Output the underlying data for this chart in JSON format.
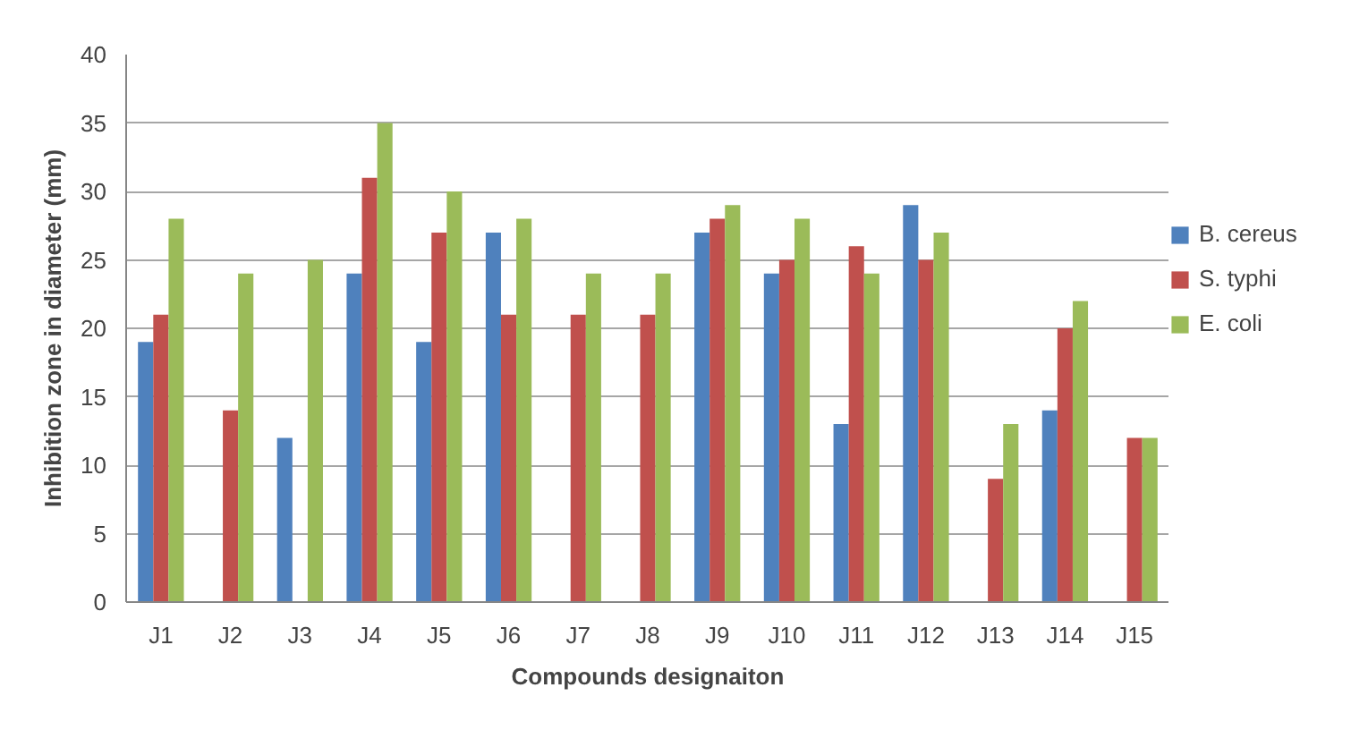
{
  "chart_data": {
    "type": "bar",
    "xlabel": "Compounds designaiton",
    "ylabel": "Inhibition zone in diameter (mm)",
    "categories": [
      "J1",
      "J2",
      "J3",
      "J4",
      "J5",
      "J6",
      "J7",
      "J8",
      "J9",
      "J10",
      "J11",
      "J12",
      "J13",
      "J14",
      "J15"
    ],
    "series": [
      {
        "name": "B. cereus",
        "color": "#4f81bd",
        "values": [
          19,
          null,
          12,
          24,
          19,
          27,
          null,
          null,
          27,
          24,
          13,
          29,
          null,
          14,
          null
        ]
      },
      {
        "name": "S. typhi",
        "color": "#c0504d",
        "values": [
          21,
          14,
          null,
          31,
          27,
          21,
          21,
          21,
          28,
          25,
          26,
          25,
          9,
          20,
          12
        ]
      },
      {
        "name": "E. coli",
        "color": "#9bbb59",
        "values": [
          28,
          24,
          25,
          35,
          30,
          28,
          24,
          24,
          29,
          28,
          24,
          27,
          13,
          22,
          12
        ]
      }
    ],
    "ylim": [
      0,
      40
    ],
    "yticks": [
      0,
      5,
      10,
      15,
      20,
      25,
      30,
      35,
      40
    ],
    "grid": "y",
    "legend": "right"
  }
}
